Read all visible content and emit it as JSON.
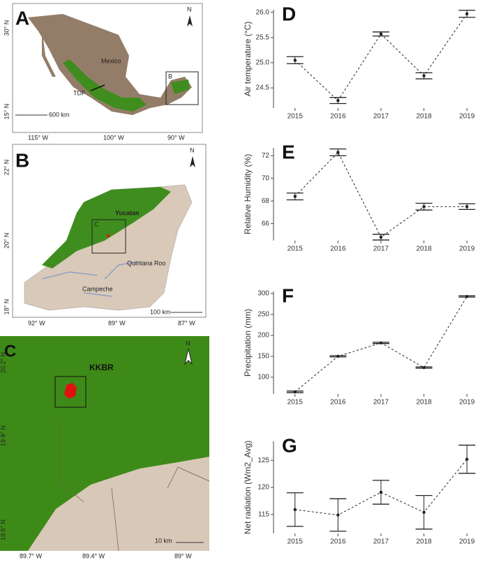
{
  "maps": [
    {
      "panel": "A",
      "north": "N",
      "labels": [
        "Mexico",
        "TDF",
        "B"
      ],
      "scale": "600 km",
      "lon_ticks": [
        "115° W",
        "100° W",
        "90° W"
      ],
      "lat_ticks": [
        "30° N",
        "15° N"
      ]
    },
    {
      "panel": "B",
      "north": "N",
      "labels": [
        "Yucatan",
        "C",
        "Quintana Roo",
        "Campeche"
      ],
      "scale": "100 km",
      "lon_ticks": [
        "92° W",
        "89° W",
        "87° W"
      ],
      "lat_ticks": [
        "22° N",
        "20° N",
        "18° N"
      ]
    },
    {
      "panel": "C",
      "north": "N",
      "labels": [
        "KKBR"
      ],
      "scale": "10 km",
      "lon_ticks": [
        "89.7° W",
        "89.4° W",
        "89° W"
      ],
      "lat_ticks": [
        "20.2° N",
        "19.9° N",
        "19.5° N"
      ]
    }
  ],
  "chart_data": [
    {
      "type": "line",
      "panel": "D",
      "y_label": "Air temperature (°C)",
      "categories": [
        "2015",
        "2016",
        "2017",
        "2018",
        "2019"
      ],
      "values": [
        25.05,
        24.25,
        25.57,
        24.74,
        25.97
      ],
      "errors": [
        0.07,
        0.06,
        0.04,
        0.06,
        0.07
      ],
      "ylim": [
        24.1,
        26.05
      ],
      "yticks": [
        {
          "value": 24.5,
          "label": "24.5"
        },
        {
          "value": 25.0,
          "label": "25.0"
        },
        {
          "value": 25.5,
          "label": "25.5"
        },
        {
          "value": 26.0,
          "label": "26.0"
        }
      ],
      "color": "#222"
    },
    {
      "type": "line",
      "panel": "E",
      "y_label": "Relative Humidity (%)",
      "categories": [
        "2015",
        "2016",
        "2017",
        "2018",
        "2019"
      ],
      "values": [
        68.4,
        72.3,
        64.8,
        67.5,
        67.5
      ],
      "errors": [
        0.3,
        0.3,
        0.25,
        0.3,
        0.25
      ],
      "ylim": [
        64.5,
        72.7
      ],
      "yticks": [
        66,
        68,
        70,
        72
      ],
      "color": "#222"
    },
    {
      "type": "line",
      "panel": "F",
      "y_label": "Precipitation (mm)",
      "categories": [
        "2015",
        "2016",
        "2017",
        "2018",
        "2019"
      ],
      "values": [
        65,
        150,
        182,
        123,
        293
      ],
      "errors": [
        2,
        1.5,
        1.5,
        1.5,
        1.5
      ],
      "ylim": [
        60,
        305
      ],
      "yticks": [
        100,
        150,
        200,
        250,
        300
      ],
      "color": "#222"
    },
    {
      "type": "line",
      "panel": "G",
      "y_label": "Net radiation (Wm2_Avg)",
      "categories": [
        "2015",
        "2016",
        "2017",
        "2018",
        "2019"
      ],
      "values": [
        115.9,
        114.9,
        119.1,
        115.4,
        125.2
      ],
      "errors": [
        3.1,
        3,
        2.2,
        3.1,
        2.6
      ],
      "ylim": [
        111.5,
        128.5
      ],
      "yticks": [
        115,
        120,
        125
      ],
      "color": "#222"
    }
  ]
}
